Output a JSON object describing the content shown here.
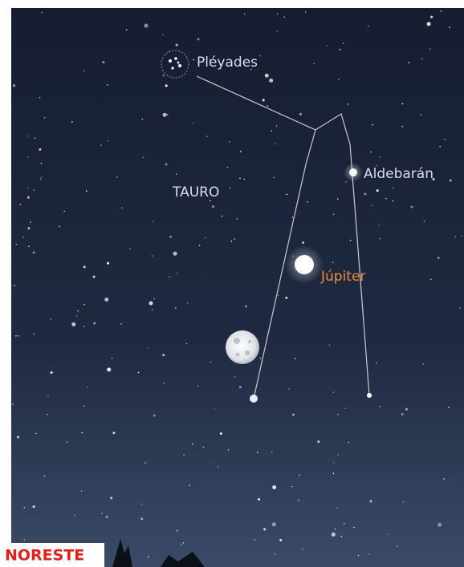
{
  "labels": {
    "pleiades": "Pléyades",
    "constellation": "TAURO",
    "aldebaran": "Aldebarán",
    "jupiter": "Júpiter",
    "direction": "NORESTE"
  }
}
